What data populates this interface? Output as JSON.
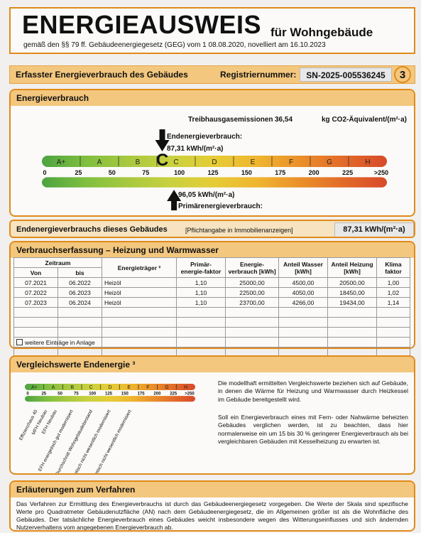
{
  "header": {
    "title": "ENERGIEAUSWEIS",
    "subtitle": "für Wohngebäude",
    "law_text": "gemäß den §§ 79 ff. Gebäudeenergiegesetz (GEG) vom 1  08.08.2020, novelliert am 16.10.2023"
  },
  "section_bar": {
    "title": "Erfasster Energieverbrauch des Gebäudes",
    "reg_label": "Registriernummer:",
    "reg_value": "SN-2025-005536245",
    "page": "3"
  },
  "energy": {
    "title": "Energieverbrauch",
    "ghg_label": "Treibhausgasemissionen",
    "ghg_value": "36,54",
    "ghg_unit": "kg CO2-Äquivalent/(m²·a)",
    "end_label": "Endenergieverbrauch:",
    "end_value": "87,31 kWh/(m²·a)",
    "primary_value": "96,05 kWh/(m²·a)",
    "primary_label": "Primärenergieverbrauch:",
    "marker_class": "C",
    "end_numeric": 87.31,
    "primary_numeric": 96.05,
    "classes": [
      "A+",
      "A",
      "B",
      "C",
      "D",
      "E",
      "F",
      "G",
      "H"
    ],
    "ticks": [
      "0",
      "25",
      "50",
      "75",
      "100",
      "125",
      "150",
      "175",
      "200",
      "225",
      ">250"
    ],
    "scale_colors": [
      "#4ca340",
      "#7fbf3f",
      "#a8c840",
      "#c9d13e",
      "#e6cc35",
      "#efb52f",
      "#ea8f2a",
      "#e26a29",
      "#d84a2a"
    ]
  },
  "endenergy_row": {
    "label": "Endenergieverbrauchs dieses Gebäudes",
    "note": "[Pflichtangabe in Immobilienanzeigen]",
    "value": "87,31 kWh/(m²·a)"
  },
  "consumption": {
    "title": "Verbrauchserfassung – Heizung und Warmwasser",
    "headers": {
      "zeitraum": "Zeitraum",
      "von": "Von",
      "bis": "bis",
      "traeger": "Energieträger ²",
      "faktor": "Primär-energie-faktor",
      "verbrauch": "Energie-verbrauch [kWh]",
      "wasser": "Anteil Wasser [kWh]",
      "heizung": "Anteil Heizung [kWh]",
      "klima": "Klima faktor"
    },
    "rows": [
      [
        "07.2021",
        "06.2022",
        "Heizöl",
        "1,10",
        "25000,00",
        "4500,00",
        "20500,00",
        "1,00"
      ],
      [
        "07.2022",
        "06.2023",
        "Heizöl",
        "1,10",
        "22500,00",
        "4050,00",
        "18450,00",
        "1,02"
      ],
      [
        "07.2023",
        "06.2024",
        "Heizöl",
        "1,10",
        "23700,00",
        "4266,00",
        "19434,00",
        "1,14"
      ]
    ],
    "more": "weitere Einträge in Anlage"
  },
  "comparison": {
    "title": "Vergleichswerte Endenergie ³",
    "labels": [
      "Effizienzhaus 40",
      "MFH Neubau",
      "EFH Neubau",
      "EFH energetisch gut modernisiert",
      "Durchschnitt Wohngebäudebestand",
      "MFH energetisch nicht wesentlich modernisiert",
      "EFH energetisch nicht wesentlich modernisiert"
    ],
    "text1": "Die modellhaft ermittelten Vergleichswerte beziehen sich auf Gebäude, in denen die Wärme für Heizung und Warmwasser durch Heizkessel im Gebäude bereitgestellt wird.",
    "text2": "Soll ein Energieverbrauch eines mit Fern- oder Nahwärme beheizten Gebäudes verglichen werden, ist zu beachten, dass hier normalerweise ein um 15 bis 30 % geringerer Energieverbrauch als bei vergleichbaren Gebäuden mit Kesselheizung zu erwarten ist."
  },
  "explanation": {
    "title": "Erläuterungen zum Verfahren",
    "text": "Das Verfahren zur Ermittlung des Energieverbrauchs ist durch das Gebäudeenergiegesetz vorgegeben. Die Werte der Skala sind spezifische Werte pro Quadratmeter Gebäudenutzfläche (AN) nach dem Gebäudeenergiegesetz, die im Allgemeinen größer ist als die Wohnfläche des Gebäudes. Der tatsächliche Energieverbrauch eines Gebäudes weicht insbesondere wegen des Witterungseinflusses und sich ändernden Nutzerverhaltens vom angegebenen Energieverbrauch ab."
  }
}
